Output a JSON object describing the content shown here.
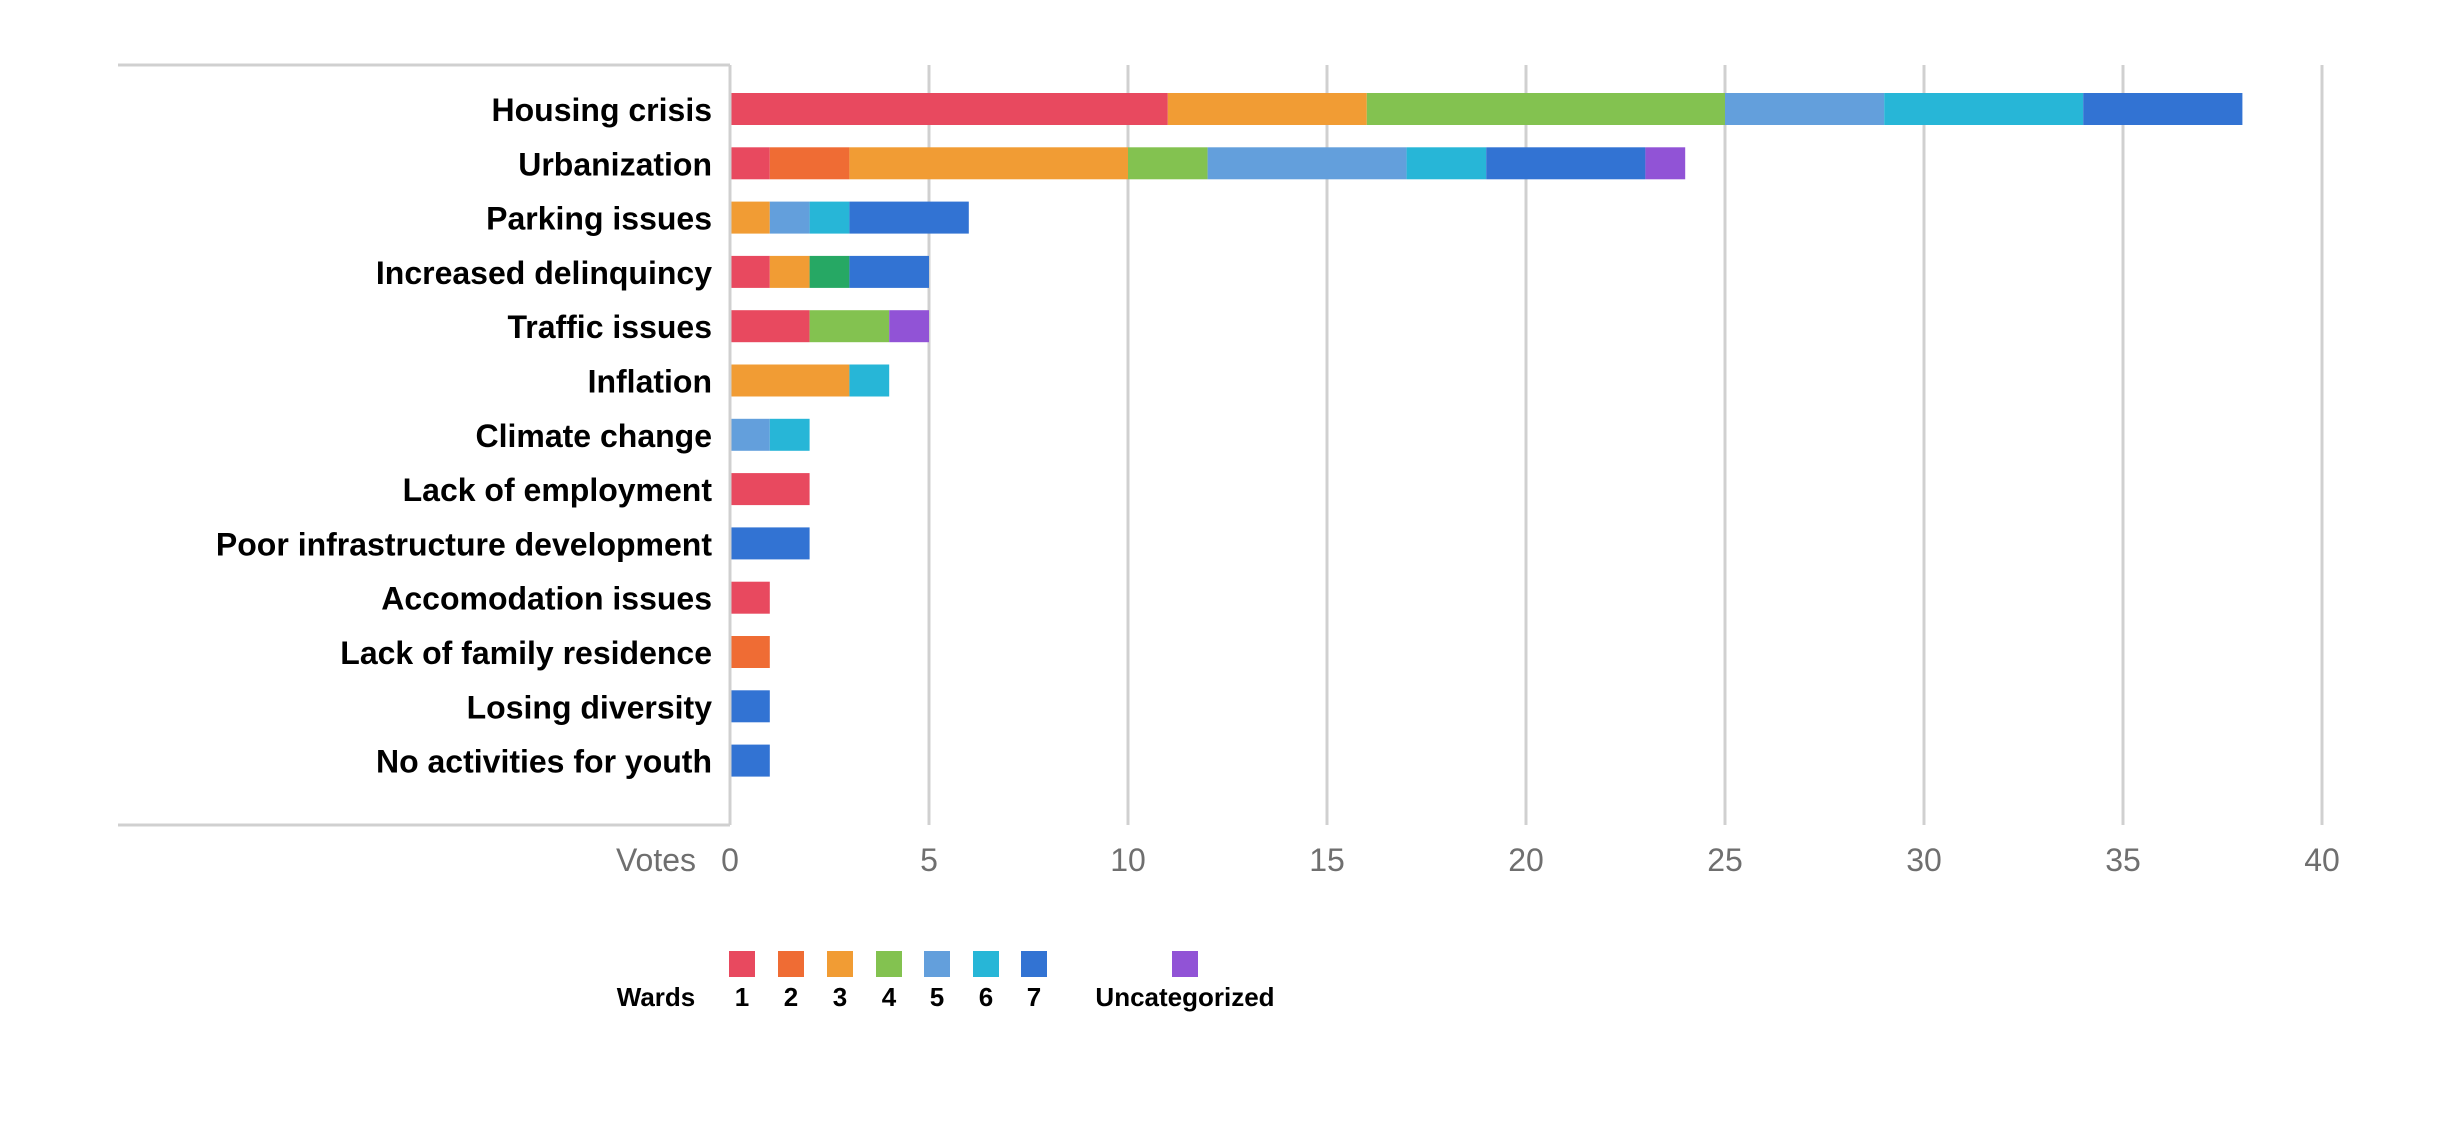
{
  "chart_data": {
    "type": "bar",
    "orientation": "horizontal",
    "stacked": true,
    "title": "",
    "xlabel": "Votes",
    "ylabel": "",
    "xlim": [
      0,
      40
    ],
    "x_ticks": [
      0,
      5,
      10,
      15,
      20,
      25,
      30,
      35,
      40
    ],
    "grid": true,
    "legend_position": "bottom",
    "legend_title": "Wards",
    "categories": [
      "Housing crisis",
      "Urbanization",
      "Parking issues",
      "Increased delinquincy",
      "Traffic issues",
      "Inflation",
      "Climate change",
      "Lack of employment",
      "Poor infrastructure development",
      "Accomodation issues",
      "Lack of family residence",
      "Losing diversity",
      "No activities for youth"
    ],
    "series": [
      {
        "name": "1",
        "color": "#e8495f",
        "values": [
          11,
          1,
          0,
          1,
          2,
          0,
          0,
          2,
          0,
          1,
          0,
          0,
          0
        ]
      },
      {
        "name": "2",
        "color": "#ef6c34",
        "values": [
          0,
          2,
          0,
          0,
          0,
          0,
          0,
          0,
          0,
          0,
          1,
          0,
          0
        ]
      },
      {
        "name": "3",
        "color": "#f19c34",
        "values": [
          5,
          7,
          1,
          1,
          0,
          3,
          0,
          0,
          0,
          0,
          0,
          0,
          0
        ]
      },
      {
        "name": "4",
        "color": "#83c250",
        "values": [
          9,
          2,
          0,
          1,
          2,
          0,
          0,
          0,
          0,
          0,
          0,
          0,
          0
        ]
      },
      {
        "name": "5",
        "color": "#639fdc",
        "values": [
          4,
          5,
          1,
          0,
          0,
          0,
          1,
          0,
          0,
          0,
          0,
          0,
          0
        ]
      },
      {
        "name": "6",
        "color": "#27b6d7",
        "values": [
          5,
          2,
          1,
          0,
          0,
          1,
          1,
          0,
          0,
          0,
          0,
          0,
          0
        ]
      },
      {
        "name": "7",
        "color": "#3273d3",
        "values": [
          4,
          4,
          3,
          2,
          0,
          0,
          0,
          0,
          2,
          0,
          0,
          1,
          1
        ]
      },
      {
        "name": "Uncategorized",
        "color": "#9153d6",
        "values": [
          0,
          1,
          0,
          0,
          1,
          0,
          0,
          0,
          0,
          0,
          0,
          0,
          0
        ]
      }
    ],
    "special_colors": {
      "Increased delinquincy": {
        "4": "#26a864"
      }
    }
  }
}
